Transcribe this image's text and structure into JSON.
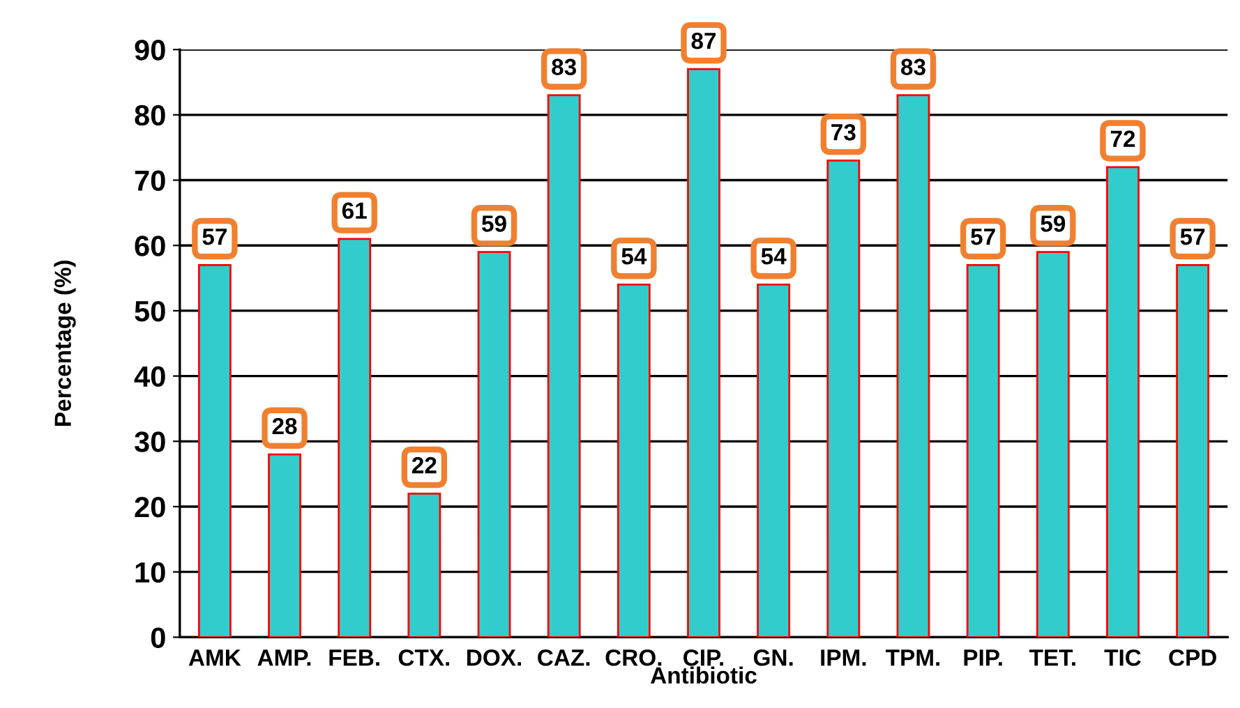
{
  "chart_data": {
    "type": "bar",
    "categories": [
      "AMK",
      "AMP.",
      "FEB.",
      "CTX.",
      "DOX.",
      "CAZ.",
      "CRO.",
      "CIP.",
      "GN.",
      "IPM.",
      "TPM.",
      "PIP.",
      "TET.",
      "TIC",
      "CPD"
    ],
    "values": [
      57,
      28,
      61,
      22,
      59,
      83,
      54,
      87,
      54,
      73,
      83,
      57,
      59,
      72,
      57
    ],
    "color": "#33cccc",
    "xlabel": "Antibiotic",
    "ylabel": "Percentage (%)",
    "ylim": [
      0,
      90
    ],
    "yticks": [
      0,
      10,
      20,
      30,
      40,
      50,
      60,
      70,
      80,
      90
    ],
    "grid": "y",
    "data_labels": true
  }
}
